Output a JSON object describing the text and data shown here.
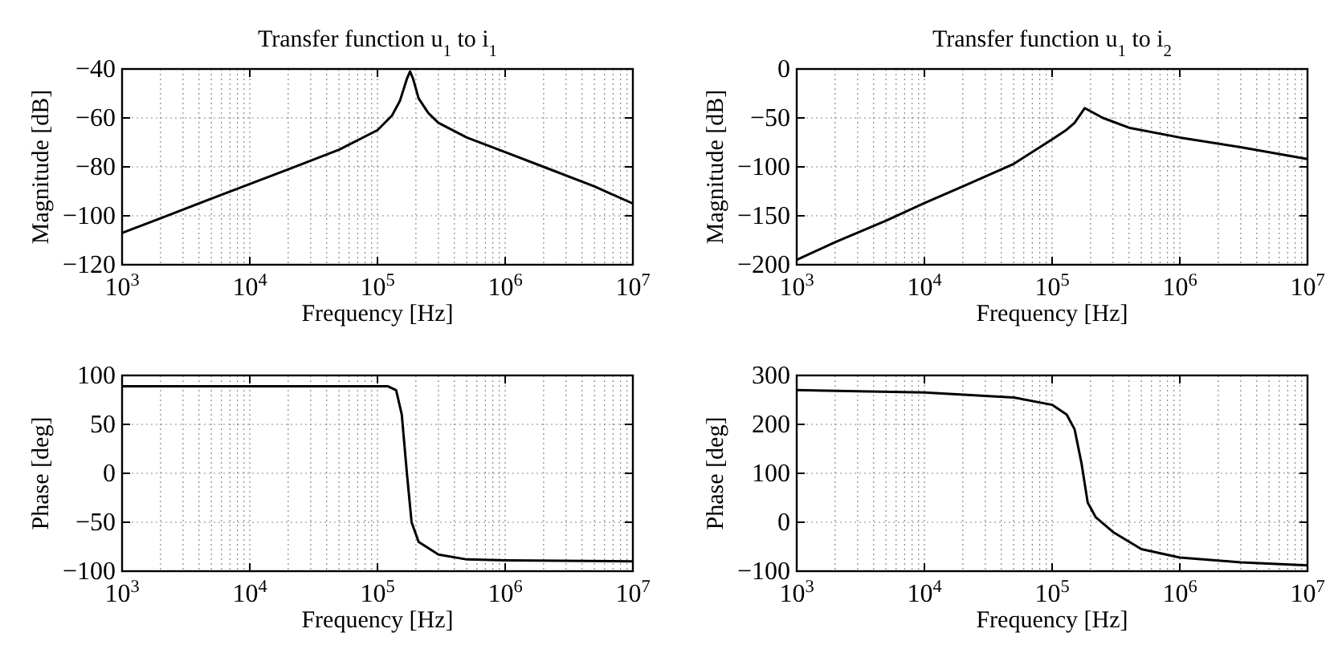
{
  "chart_data": [
    {
      "type": "line",
      "title": "Transfer function u$_{1}$ to i$_{1}$",
      "xlabel": "Frequency [Hz]",
      "ylabel": "Magnitude [dB]",
      "log": "x",
      "grid": true,
      "xlim": [
        1000,
        10000000
      ],
      "xticks": [
        {
          "value": 1000,
          "label": "10$^{3}$"
        },
        {
          "value": 10000,
          "label": "10$^{4}$"
        },
        {
          "value": 100000,
          "label": "10$^{5}$"
        },
        {
          "value": 1000000,
          "label": "10$^{6}$"
        },
        {
          "value": 10000000,
          "label": "10$^{7}$"
        }
      ],
      "ylim": [
        -120,
        -40
      ],
      "yticks": [
        -120,
        -100,
        -80,
        -60,
        -40
      ],
      "x": [
        1000,
        2000,
        5000,
        10000,
        20000,
        50000,
        100000,
        130000,
        150000,
        170000,
        180000,
        190000,
        210000,
        250000,
        300000,
        500000,
        1000000,
        2000000,
        5000000,
        10000000
      ],
      "series": [
        {
          "color": "#000000",
          "values": [
            -107,
            -101,
            -93,
            -87,
            -81,
            -73,
            -65,
            -59,
            -53,
            -44,
            -41,
            -44,
            -52,
            -58,
            -62,
            -68,
            -74,
            -80,
            -88,
            -95
          ]
        }
      ]
    },
    {
      "type": "line",
      "title": "Transfer function u$_{1}$ to i$_{2}$",
      "xlabel": "Frequency [Hz]",
      "ylabel": "Magnitude [dB]",
      "log": "x",
      "grid": true,
      "xlim": [
        1000,
        10000000
      ],
      "xticks": [
        {
          "value": 1000,
          "label": "10$^{3}$"
        },
        {
          "value": 10000,
          "label": "10$^{4}$"
        },
        {
          "value": 100000,
          "label": "10$^{5}$"
        },
        {
          "value": 1000000,
          "label": "10$^{6}$"
        },
        {
          "value": 10000000,
          "label": "10$^{7}$"
        }
      ],
      "ylim": [
        -200,
        0
      ],
      "yticks": [
        -200,
        -150,
        -100,
        -50,
        0
      ],
      "x": [
        1000,
        2000,
        5000,
        10000,
        20000,
        50000,
        100000,
        130000,
        150000,
        180000,
        250000,
        400000,
        1000000,
        3000000,
        10000000
      ],
      "series": [
        {
          "color": "#000000",
          "values": [
            -195,
            -177,
            -155,
            -137,
            -120,
            -97,
            -72,
            -62,
            -55,
            -40,
            -50,
            -60,
            -70,
            -80,
            -92
          ]
        }
      ]
    },
    {
      "type": "line",
      "xlabel": "Frequency [Hz]",
      "ylabel": "Phase [deg]",
      "log": "x",
      "grid": true,
      "xlim": [
        1000,
        10000000
      ],
      "xticks": [
        {
          "value": 1000,
          "label": "10$^{3}$"
        },
        {
          "value": 10000,
          "label": "10$^{4}$"
        },
        {
          "value": 100000,
          "label": "10$^{5}$"
        },
        {
          "value": 1000000,
          "label": "10$^{6}$"
        },
        {
          "value": 10000000,
          "label": "10$^{7}$"
        }
      ],
      "ylim": [
        -100,
        100
      ],
      "yticks": [
        -100,
        -50,
        0,
        50,
        100
      ],
      "x": [
        1000,
        10000,
        100000,
        120000,
        140000,
        155000,
        170000,
        185000,
        210000,
        300000,
        500000,
        1000000,
        10000000
      ],
      "series": [
        {
          "color": "#000000",
          "values": [
            89,
            89,
            89,
            89,
            85,
            60,
            0,
            -50,
            -70,
            -83,
            -88,
            -89,
            -90
          ]
        }
      ]
    },
    {
      "type": "line",
      "xlabel": "Frequency [Hz]",
      "ylabel": "Phase [deg]",
      "log": "x",
      "grid": true,
      "xlim": [
        1000,
        10000000
      ],
      "xticks": [
        {
          "value": 1000,
          "label": "10$^{3}$"
        },
        {
          "value": 10000,
          "label": "10$^{4}$"
        },
        {
          "value": 100000,
          "label": "10$^{5}$"
        },
        {
          "value": 1000000,
          "label": "10$^{6}$"
        },
        {
          "value": 10000000,
          "label": "10$^{7}$"
        }
      ],
      "ylim": [
        -100,
        300
      ],
      "yticks": [
        -100,
        0,
        100,
        200,
        300
      ],
      "x": [
        1000,
        10000,
        50000,
        100000,
        130000,
        150000,
        170000,
        190000,
        220000,
        300000,
        500000,
        1000000,
        3000000,
        10000000
      ],
      "series": [
        {
          "color": "#000000",
          "values": [
            270,
            265,
            255,
            240,
            220,
            190,
            120,
            40,
            10,
            -20,
            -55,
            -72,
            -82,
            -88
          ]
        }
      ]
    }
  ]
}
